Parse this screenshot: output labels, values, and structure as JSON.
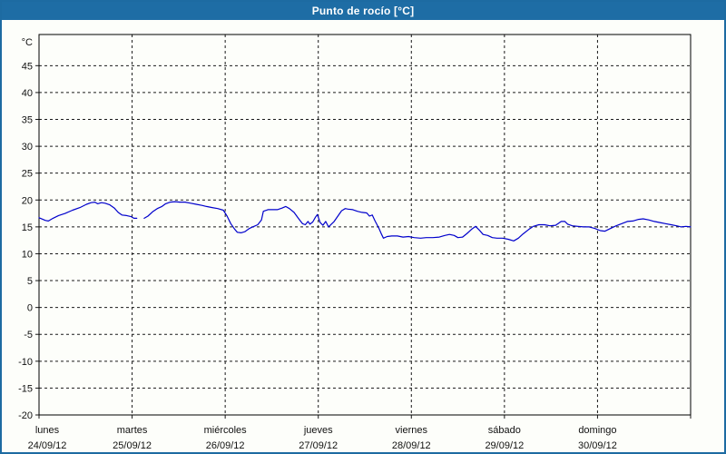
{
  "window": {
    "title": "Punto de rocío [°C]"
  },
  "colors": {
    "frame_border": "#1d6ba2",
    "titlebar_bg": "#1e6da5",
    "titlebar_text": "#ffffff",
    "chart_bg": "#fdfefa",
    "grid": "#1a1a1a",
    "line": "#0000cc"
  },
  "chart_data": {
    "type": "line",
    "title": "Punto de rocío [°C]",
    "ylabel": "°C",
    "ylim": [
      -20,
      50.8
    ],
    "y_ticks": [
      45,
      40,
      35,
      30,
      25,
      20,
      15,
      10,
      5,
      0,
      -5,
      -10,
      -15,
      -20
    ],
    "xlim_days": [
      0,
      7
    ],
    "x_days": [
      {
        "name": "lunes",
        "date": "24/09/12"
      },
      {
        "name": "martes",
        "date": "25/09/12"
      },
      {
        "name": "miércoles",
        "date": "26/09/12"
      },
      {
        "name": "jueves",
        "date": "27/09/12"
      },
      {
        "name": "viernes",
        "date": "28/09/12"
      },
      {
        "name": "sábado",
        "date": "29/09/12"
      },
      {
        "name": "domingo",
        "date": "30/09/12"
      }
    ],
    "grid": "dashed",
    "legend": "none",
    "line_color": "#0000cc",
    "series": [
      {
        "name": "Punto de rocío",
        "x_unit": "days since 24/09/12 00:00",
        "y_unit": "°C",
        "segments": [
          [
            [
              0.0,
              16.7
            ],
            [
              0.07,
              16.2
            ],
            [
              0.1,
              16.1
            ],
            [
              0.15,
              16.6
            ],
            [
              0.21,
              17.1
            ],
            [
              0.28,
              17.5
            ],
            [
              0.36,
              18.1
            ],
            [
              0.44,
              18.6
            ],
            [
              0.51,
              19.2
            ],
            [
              0.56,
              19.5
            ],
            [
              0.6,
              19.6
            ],
            [
              0.63,
              19.3
            ],
            [
              0.67,
              19.5
            ],
            [
              0.71,
              19.4
            ],
            [
              0.76,
              19.1
            ],
            [
              0.81,
              18.5
            ],
            [
              0.85,
              17.7
            ],
            [
              0.89,
              17.2
            ],
            [
              0.94,
              17.1
            ],
            [
              0.99,
              16.9
            ],
            [
              1.02,
              16.6
            ],
            [
              1.05,
              16.6
            ]
          ],
          [
            [
              1.13,
              16.6
            ],
            [
              1.17,
              17.0
            ],
            [
              1.22,
              17.8
            ],
            [
              1.27,
              18.4
            ],
            [
              1.32,
              18.8
            ],
            [
              1.36,
              19.3
            ],
            [
              1.41,
              19.6
            ],
            [
              1.46,
              19.7
            ],
            [
              1.51,
              19.6
            ],
            [
              1.57,
              19.6
            ],
            [
              1.63,
              19.4
            ],
            [
              1.69,
              19.2
            ],
            [
              1.75,
              19.0
            ],
            [
              1.8,
              18.8
            ],
            [
              1.86,
              18.6
            ],
            [
              1.92,
              18.4
            ],
            [
              1.98,
              18.1
            ],
            [
              2.02,
              17.0
            ],
            [
              2.06,
              15.6
            ],
            [
              2.1,
              14.6
            ],
            [
              2.13,
              14.0
            ],
            [
              2.17,
              13.9
            ],
            [
              2.21,
              14.1
            ],
            [
              2.26,
              14.7
            ],
            [
              2.31,
              15.1
            ],
            [
              2.35,
              15.4
            ],
            [
              2.39,
              16.3
            ],
            [
              2.41,
              17.9
            ],
            [
              2.46,
              18.2
            ],
            [
              2.51,
              18.2
            ],
            [
              2.56,
              18.2
            ],
            [
              2.61,
              18.5
            ],
            [
              2.65,
              18.8
            ],
            [
              2.69,
              18.4
            ],
            [
              2.74,
              17.7
            ],
            [
              2.79,
              16.5
            ],
            [
              2.83,
              15.6
            ],
            [
              2.86,
              15.4
            ],
            [
              2.89,
              16.0
            ],
            [
              2.91,
              15.5
            ],
            [
              2.94,
              15.9
            ],
            [
              2.97,
              16.8
            ],
            [
              2.99,
              17.3
            ],
            [
              3.02,
              15.8
            ],
            [
              3.05,
              15.3
            ],
            [
              3.08,
              16.0
            ],
            [
              3.11,
              15.0
            ],
            [
              3.14,
              15.5
            ],
            [
              3.17,
              16.0
            ],
            [
              3.21,
              17.0
            ],
            [
              3.25,
              18.0
            ],
            [
              3.29,
              18.4
            ],
            [
              3.32,
              18.3
            ],
            [
              3.37,
              18.2
            ],
            [
              3.42,
              17.9
            ],
            [
              3.47,
              17.7
            ],
            [
              3.52,
              17.6
            ],
            [
              3.55,
              17.0
            ],
            [
              3.58,
              17.2
            ],
            [
              3.61,
              16.1
            ],
            [
              3.65,
              14.8
            ],
            [
              3.68,
              13.6
            ],
            [
              3.7,
              12.9
            ],
            [
              3.74,
              13.2
            ],
            [
              3.79,
              13.3
            ],
            [
              3.85,
              13.3
            ],
            [
              3.91,
              13.1
            ],
            [
              3.97,
              13.2
            ],
            [
              4.03,
              13.0
            ],
            [
              4.1,
              12.9
            ],
            [
              4.16,
              13.0
            ],
            [
              4.23,
              13.0
            ],
            [
              4.3,
              13.1
            ],
            [
              4.36,
              13.4
            ],
            [
              4.41,
              13.6
            ],
            [
              4.46,
              13.4
            ],
            [
              4.5,
              13.0
            ],
            [
              4.55,
              13.1
            ],
            [
              4.6,
              13.8
            ],
            [
              4.65,
              14.6
            ],
            [
              4.69,
              15.1
            ],
            [
              4.73,
              14.4
            ],
            [
              4.77,
              13.6
            ],
            [
              4.82,
              13.4
            ],
            [
              4.87,
              13.0
            ],
            [
              4.92,
              12.9
            ],
            [
              4.98,
              12.9
            ],
            [
              5.04,
              12.7
            ],
            [
              5.1,
              12.4
            ],
            [
              5.15,
              12.9
            ],
            [
              5.2,
              13.7
            ],
            [
              5.26,
              14.5
            ],
            [
              5.31,
              15.1
            ],
            [
              5.37,
              15.4
            ],
            [
              5.43,
              15.4
            ],
            [
              5.49,
              15.2
            ],
            [
              5.55,
              15.3
            ],
            [
              5.61,
              16.0
            ],
            [
              5.65,
              16.0
            ],
            [
              5.68,
              15.5
            ],
            [
              5.73,
              15.2
            ],
            [
              5.79,
              15.1
            ],
            [
              5.85,
              15.0
            ],
            [
              5.91,
              15.0
            ],
            [
              5.97,
              14.7
            ],
            [
              6.03,
              14.3
            ],
            [
              6.08,
              14.2
            ],
            [
              6.14,
              14.7
            ],
            [
              6.2,
              15.2
            ],
            [
              6.26,
              15.6
            ],
            [
              6.32,
              16.0
            ],
            [
              6.38,
              16.1
            ],
            [
              6.44,
              16.4
            ],
            [
              6.49,
              16.5
            ],
            [
              6.55,
              16.3
            ],
            [
              6.61,
              16.0
            ],
            [
              6.67,
              15.8
            ],
            [
              6.73,
              15.6
            ],
            [
              6.79,
              15.4
            ],
            [
              6.85,
              15.2
            ],
            [
              6.9,
              15.0
            ],
            [
              6.95,
              15.1
            ],
            [
              7.0,
              15.0
            ]
          ]
        ]
      }
    ]
  }
}
